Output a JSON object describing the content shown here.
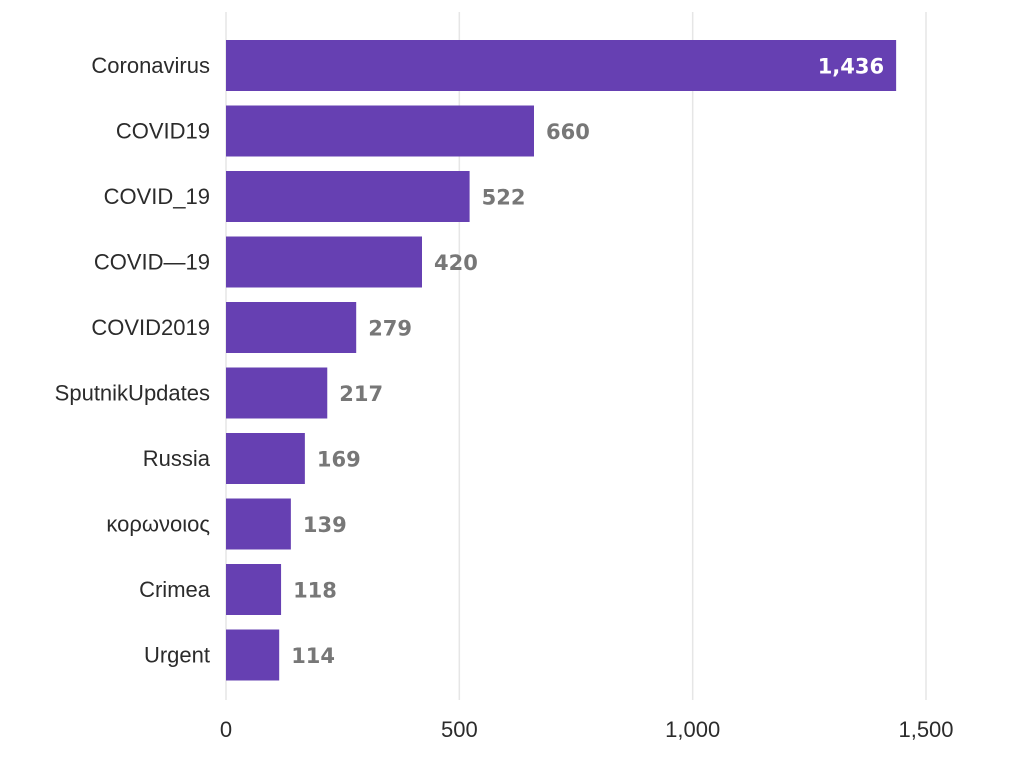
{
  "chart_data": {
    "type": "bar",
    "orientation": "horizontal",
    "categories": [
      "Coronavirus",
      "COVID19",
      "COVID_19",
      "COVID—19",
      "COVID2019",
      "SputnikUpdates",
      "Russia",
      "κορωνοιος",
      "Crimea",
      "Urgent"
    ],
    "values": [
      1436,
      660,
      522,
      420,
      279,
      217,
      169,
      139,
      118,
      114
    ],
    "value_labels": [
      "1,436",
      "660",
      "522",
      "420",
      "279",
      "217",
      "169",
      "139",
      "118",
      "114"
    ],
    "x_ticks": [
      0,
      500,
      1000,
      1500
    ],
    "x_tick_labels": [
      "0",
      "500",
      "1,000",
      "1,500"
    ],
    "xlim": [
      0,
      1500
    ],
    "title": "",
    "xlabel": "",
    "ylabel": "",
    "grid": "vertical",
    "legend": "none",
    "bar_color": "#6640b2",
    "label_color_outside": "#777777",
    "label_color_inside": "#ffffff"
  }
}
